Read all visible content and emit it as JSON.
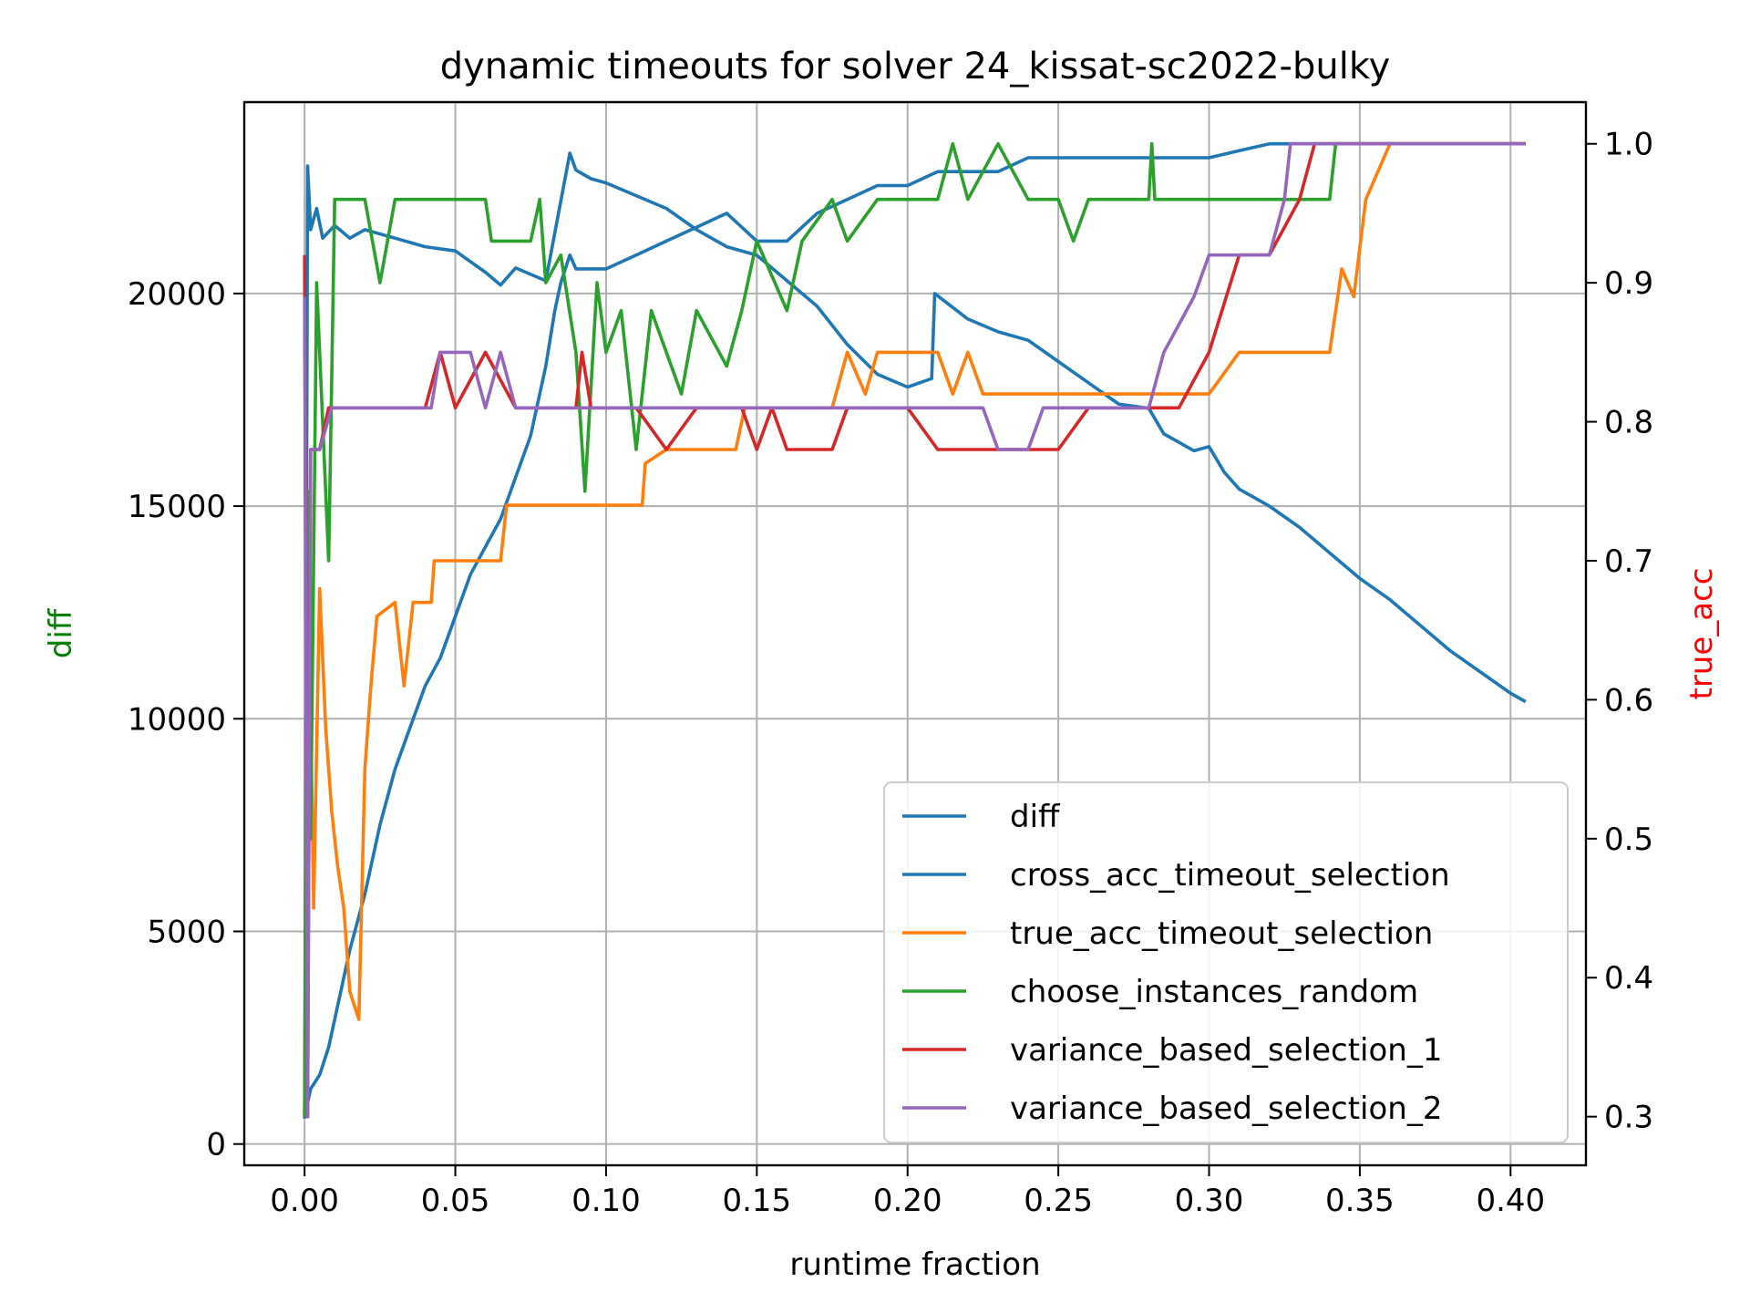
{
  "chart_data": {
    "type": "line",
    "title": "dynamic timeouts for solver 24_kissat-sc2022-bulky",
    "xlabel": "runtime fraction",
    "ylabel_left": "diff",
    "ylabel_right": "true_acc",
    "ylabel_left_color": "#008000",
    "ylabel_right_color": "#ff0000",
    "xlim": [
      -0.02,
      0.425
    ],
    "ylim_left": [
      -500,
      24500
    ],
    "ylim_right": [
      0.265,
      1.03
    ],
    "grid": true,
    "legend_position": "lower-right",
    "x_ticks": [
      "0.00",
      "0.05",
      "0.10",
      "0.15",
      "0.20",
      "0.25",
      "0.30",
      "0.35",
      "0.40"
    ],
    "y_left_ticks": [
      "0",
      "5000",
      "10000",
      "15000",
      "20000"
    ],
    "y_right_ticks": [
      "0.3",
      "0.4",
      "0.5",
      "0.6",
      "0.7",
      "0.8",
      "0.9",
      "1.0"
    ],
    "series": [
      {
        "name": "diff",
        "axis": "left",
        "color": "#1f77b4",
        "points": [
          [
            0.0,
            600
          ],
          [
            0.001,
            23000
          ],
          [
            0.002,
            21500
          ],
          [
            0.004,
            22000
          ],
          [
            0.006,
            21300
          ],
          [
            0.01,
            21600
          ],
          [
            0.015,
            21300
          ],
          [
            0.02,
            21500
          ],
          [
            0.03,
            21300
          ],
          [
            0.04,
            21100
          ],
          [
            0.05,
            21000
          ],
          [
            0.06,
            20500
          ],
          [
            0.065,
            20200
          ],
          [
            0.07,
            20600
          ],
          [
            0.08,
            20300
          ],
          [
            0.088,
            23300
          ],
          [
            0.09,
            22900
          ],
          [
            0.095,
            22700
          ],
          [
            0.1,
            22600
          ],
          [
            0.11,
            22300
          ],
          [
            0.12,
            22000
          ],
          [
            0.13,
            21500
          ],
          [
            0.14,
            21100
          ],
          [
            0.15,
            20900
          ],
          [
            0.16,
            20300
          ],
          [
            0.17,
            19700
          ],
          [
            0.18,
            18800
          ],
          [
            0.19,
            18100
          ],
          [
            0.2,
            17800
          ],
          [
            0.208,
            18000
          ],
          [
            0.209,
            20000
          ],
          [
            0.22,
            19400
          ],
          [
            0.23,
            19100
          ],
          [
            0.24,
            18900
          ],
          [
            0.25,
            18400
          ],
          [
            0.26,
            17900
          ],
          [
            0.27,
            17400
          ],
          [
            0.28,
            17300
          ],
          [
            0.285,
            16700
          ],
          [
            0.29,
            16500
          ],
          [
            0.295,
            16300
          ],
          [
            0.3,
            16400
          ],
          [
            0.305,
            15800
          ],
          [
            0.31,
            15400
          ],
          [
            0.32,
            15000
          ],
          [
            0.33,
            14500
          ],
          [
            0.34,
            13900
          ],
          [
            0.35,
            13300
          ],
          [
            0.36,
            12800
          ],
          [
            0.37,
            12200
          ],
          [
            0.38,
            11600
          ],
          [
            0.39,
            11100
          ],
          [
            0.4,
            10600
          ],
          [
            0.405,
            10400
          ]
        ]
      },
      {
        "name": "cross_acc_timeout_selection",
        "axis": "right",
        "color": "#1f77b4",
        "points": [
          [
            0.0,
            0.3
          ],
          [
            0.002,
            0.32
          ],
          [
            0.005,
            0.33
          ],
          [
            0.008,
            0.35
          ],
          [
            0.01,
            0.37
          ],
          [
            0.015,
            0.42
          ],
          [
            0.02,
            0.46
          ],
          [
            0.025,
            0.51
          ],
          [
            0.03,
            0.55
          ],
          [
            0.035,
            0.58
          ],
          [
            0.04,
            0.61
          ],
          [
            0.045,
            0.63
          ],
          [
            0.05,
            0.66
          ],
          [
            0.055,
            0.69
          ],
          [
            0.06,
            0.71
          ],
          [
            0.065,
            0.73
          ],
          [
            0.07,
            0.76
          ],
          [
            0.075,
            0.79
          ],
          [
            0.08,
            0.84
          ],
          [
            0.083,
            0.88
          ],
          [
            0.085,
            0.9
          ],
          [
            0.088,
            0.92
          ],
          [
            0.09,
            0.91
          ],
          [
            0.1,
            0.91
          ],
          [
            0.11,
            0.92
          ],
          [
            0.12,
            0.93
          ],
          [
            0.13,
            0.94
          ],
          [
            0.14,
            0.95
          ],
          [
            0.15,
            0.93
          ],
          [
            0.16,
            0.93
          ],
          [
            0.17,
            0.95
          ],
          [
            0.18,
            0.96
          ],
          [
            0.19,
            0.97
          ],
          [
            0.2,
            0.97
          ],
          [
            0.21,
            0.98
          ],
          [
            0.22,
            0.98
          ],
          [
            0.23,
            0.98
          ],
          [
            0.24,
            0.99
          ],
          [
            0.25,
            0.99
          ],
          [
            0.26,
            0.99
          ],
          [
            0.28,
            0.99
          ],
          [
            0.3,
            0.99
          ],
          [
            0.31,
            0.995
          ],
          [
            0.32,
            1.0
          ],
          [
            0.33,
            1.0
          ],
          [
            0.34,
            1.0
          ],
          [
            0.35,
            1.0
          ],
          [
            0.38,
            1.0
          ],
          [
            0.39,
            1.0
          ],
          [
            0.405,
            1.0
          ]
        ]
      },
      {
        "name": "true_acc_timeout_selection",
        "axis": "right",
        "color": "#ff7f0e",
        "points": [
          [
            0.0,
            0.3
          ],
          [
            0.001,
            0.74
          ],
          [
            0.003,
            0.45
          ],
          [
            0.005,
            0.68
          ],
          [
            0.007,
            0.58
          ],
          [
            0.009,
            0.52
          ],
          [
            0.011,
            0.48
          ],
          [
            0.013,
            0.45
          ],
          [
            0.015,
            0.39
          ],
          [
            0.018,
            0.37
          ],
          [
            0.02,
            0.55
          ],
          [
            0.022,
            0.61
          ],
          [
            0.024,
            0.66
          ],
          [
            0.03,
            0.67
          ],
          [
            0.033,
            0.61
          ],
          [
            0.036,
            0.67
          ],
          [
            0.042,
            0.67
          ],
          [
            0.043,
            0.7
          ],
          [
            0.065,
            0.7
          ],
          [
            0.067,
            0.74
          ],
          [
            0.09,
            0.74
          ],
          [
            0.112,
            0.74
          ],
          [
            0.113,
            0.77
          ],
          [
            0.12,
            0.78
          ],
          [
            0.143,
            0.78
          ],
          [
            0.146,
            0.81
          ],
          [
            0.175,
            0.81
          ],
          [
            0.18,
            0.85
          ],
          [
            0.186,
            0.82
          ],
          [
            0.19,
            0.85
          ],
          [
            0.21,
            0.85
          ],
          [
            0.215,
            0.82
          ],
          [
            0.22,
            0.85
          ],
          [
            0.225,
            0.82
          ],
          [
            0.25,
            0.82
          ],
          [
            0.3,
            0.82
          ],
          [
            0.31,
            0.85
          ],
          [
            0.34,
            0.85
          ],
          [
            0.344,
            0.91
          ],
          [
            0.348,
            0.89
          ],
          [
            0.352,
            0.96
          ],
          [
            0.36,
            1.0
          ],
          [
            0.405,
            1.0
          ]
        ]
      },
      {
        "name": "choose_instances_random",
        "axis": "right",
        "color": "#2ca02c",
        "points": [
          [
            0.0,
            0.3
          ],
          [
            0.001,
            0.75
          ],
          [
            0.002,
            0.5
          ],
          [
            0.004,
            0.9
          ],
          [
            0.006,
            0.8
          ],
          [
            0.008,
            0.7
          ],
          [
            0.01,
            0.96
          ],
          [
            0.02,
            0.96
          ],
          [
            0.025,
            0.9
          ],
          [
            0.03,
            0.96
          ],
          [
            0.04,
            0.96
          ],
          [
            0.06,
            0.96
          ],
          [
            0.062,
            0.93
          ],
          [
            0.075,
            0.93
          ],
          [
            0.078,
            0.96
          ],
          [
            0.08,
            0.9
          ],
          [
            0.085,
            0.92
          ],
          [
            0.09,
            0.85
          ],
          [
            0.093,
            0.75
          ],
          [
            0.097,
            0.9
          ],
          [
            0.1,
            0.85
          ],
          [
            0.105,
            0.88
          ],
          [
            0.11,
            0.78
          ],
          [
            0.115,
            0.88
          ],
          [
            0.12,
            0.85
          ],
          [
            0.125,
            0.82
          ],
          [
            0.13,
            0.88
          ],
          [
            0.14,
            0.84
          ],
          [
            0.145,
            0.88
          ],
          [
            0.15,
            0.93
          ],
          [
            0.16,
            0.88
          ],
          [
            0.165,
            0.93
          ],
          [
            0.175,
            0.96
          ],
          [
            0.18,
            0.93
          ],
          [
            0.19,
            0.96
          ],
          [
            0.21,
            0.96
          ],
          [
            0.215,
            1.0
          ],
          [
            0.22,
            0.96
          ],
          [
            0.23,
            1.0
          ],
          [
            0.24,
            0.96
          ],
          [
            0.25,
            0.96
          ],
          [
            0.255,
            0.93
          ],
          [
            0.26,
            0.96
          ],
          [
            0.28,
            0.96
          ],
          [
            0.281,
            1.0
          ],
          [
            0.282,
            0.96
          ],
          [
            0.3,
            0.96
          ],
          [
            0.34,
            0.96
          ],
          [
            0.342,
            1.0
          ],
          [
            0.36,
            1.0
          ],
          [
            0.405,
            1.0
          ]
        ]
      },
      {
        "name": "variance_based_selection_1",
        "axis": "right",
        "color": "#d62728",
        "points": [
          [
            0.0,
            0.92
          ],
          [
            0.001,
            0.3
          ],
          [
            0.002,
            0.78
          ],
          [
            0.005,
            0.78
          ],
          [
            0.008,
            0.81
          ],
          [
            0.04,
            0.81
          ],
          [
            0.045,
            0.85
          ],
          [
            0.05,
            0.81
          ],
          [
            0.06,
            0.85
          ],
          [
            0.07,
            0.81
          ],
          [
            0.09,
            0.81
          ],
          [
            0.092,
            0.85
          ],
          [
            0.095,
            0.81
          ],
          [
            0.11,
            0.81
          ],
          [
            0.12,
            0.78
          ],
          [
            0.13,
            0.81
          ],
          [
            0.145,
            0.81
          ],
          [
            0.15,
            0.78
          ],
          [
            0.155,
            0.81
          ],
          [
            0.16,
            0.78
          ],
          [
            0.175,
            0.78
          ],
          [
            0.18,
            0.81
          ],
          [
            0.2,
            0.81
          ],
          [
            0.21,
            0.78
          ],
          [
            0.25,
            0.78
          ],
          [
            0.26,
            0.81
          ],
          [
            0.29,
            0.81
          ],
          [
            0.3,
            0.85
          ],
          [
            0.31,
            0.92
          ],
          [
            0.32,
            0.92
          ],
          [
            0.33,
            0.96
          ],
          [
            0.335,
            1.0
          ],
          [
            0.405,
            1.0
          ]
        ]
      },
      {
        "name": "variance_based_selection_2",
        "axis": "right",
        "color": "#9467bd",
        "points": [
          [
            0.0,
            0.89
          ],
          [
            0.001,
            0.3
          ],
          [
            0.002,
            0.78
          ],
          [
            0.005,
            0.78
          ],
          [
            0.009,
            0.81
          ],
          [
            0.042,
            0.81
          ],
          [
            0.045,
            0.85
          ],
          [
            0.055,
            0.85
          ],
          [
            0.06,
            0.81
          ],
          [
            0.065,
            0.85
          ],
          [
            0.07,
            0.81
          ],
          [
            0.225,
            0.81
          ],
          [
            0.23,
            0.78
          ],
          [
            0.24,
            0.78
          ],
          [
            0.245,
            0.81
          ],
          [
            0.28,
            0.81
          ],
          [
            0.285,
            0.85
          ],
          [
            0.295,
            0.89
          ],
          [
            0.3,
            0.92
          ],
          [
            0.31,
            0.92
          ],
          [
            0.32,
            0.92
          ],
          [
            0.325,
            0.96
          ],
          [
            0.327,
            1.0
          ],
          [
            0.405,
            1.0
          ]
        ]
      }
    ]
  }
}
